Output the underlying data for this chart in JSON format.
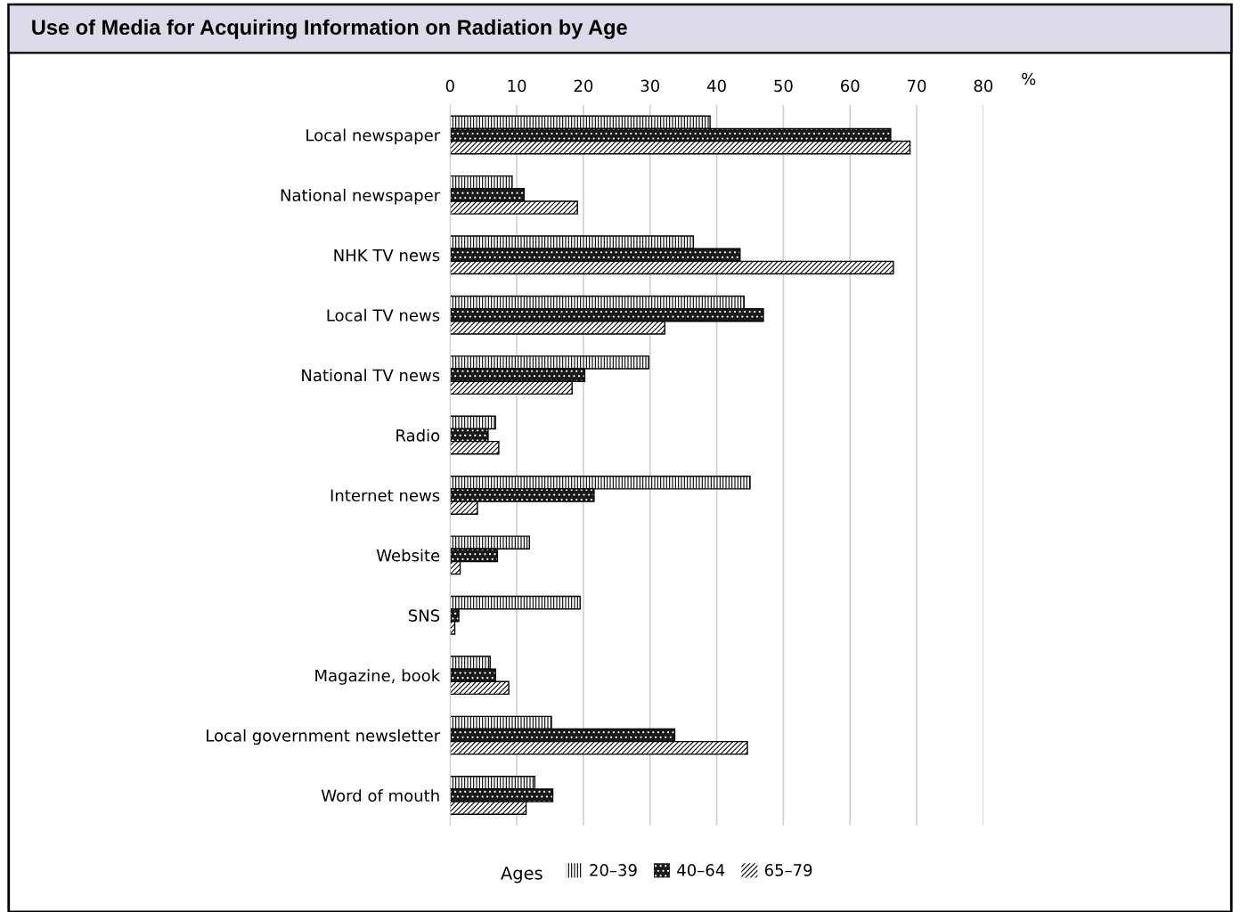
{
  "chart_data": {
    "type": "bar",
    "orientation": "horizontal",
    "title": "Use of Media for Acquiring Information on Radiation by Age",
    "xlabel": "%",
    "legend_title": "Ages",
    "legend": "bottom",
    "grid": "x",
    "categories": [
      "Local newspaper",
      "National newspaper",
      "NHK TV news",
      "Local TV news",
      "National TV news",
      "Radio",
      "Internet news",
      "Website",
      "SNS",
      "Magazine, book",
      "Local government newsletter",
      "Word of mouth"
    ],
    "series": [
      {
        "name": "20–39",
        "color": "#ffffff",
        "values": [
          39.0,
          9.3,
          36.5,
          44.1,
          29.8,
          6.8,
          45.0,
          11.9,
          19.5,
          6.0,
          15.2,
          12.7
        ]
      },
      {
        "name": "40–64",
        "color": "#1a1a1a",
        "values": [
          66.1,
          11.1,
          43.5,
          47.0,
          20.2,
          5.7,
          21.6,
          7.1,
          1.3,
          6.8,
          33.7,
          15.4
        ]
      },
      {
        "name": "65–79",
        "color": "#ffffff",
        "values": [
          69.0,
          19.1,
          66.5,
          32.2,
          18.3,
          7.3,
          4.1,
          1.5,
          0.7,
          8.8,
          44.6,
          11.4
        ]
      }
    ],
    "xlim": [
      0,
      80
    ],
    "xticks": [
      0,
      10,
      20,
      30,
      40,
      50,
      60,
      70,
      80
    ]
  }
}
